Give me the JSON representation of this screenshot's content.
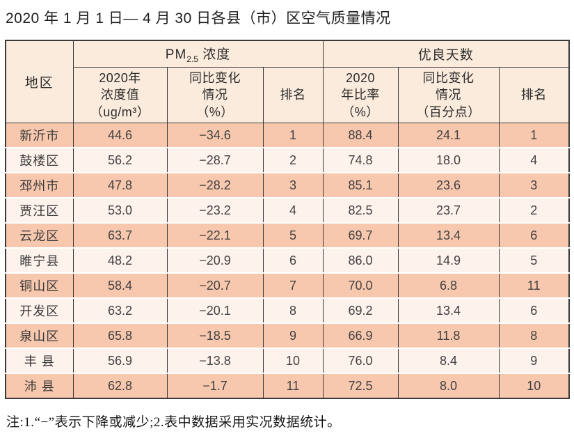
{
  "title": "2020 年 1 月 1 日— 4 月 30 日各县（市）区空气质量情况",
  "table": {
    "headers": {
      "region": "地区",
      "pm25_group": {
        "base": "PM",
        "sub": "2.5",
        "rest": " 浓度"
      },
      "good_days_group": "优良天数",
      "pm_value": "2020年\n浓度值\n（ug/m³）",
      "pm_change": "同比变化\n情况\n（%）",
      "pm_rank": "排名",
      "good_rate": "2020\n年比率\n（%）",
      "good_change": "同比变化\n情况\n（百分点）",
      "good_rank": "排名"
    },
    "rows": [
      [
        "新沂市",
        "44.6",
        "−34.6",
        "1",
        "88.4",
        "24.1",
        "1"
      ],
      [
        "鼓楼区",
        "56.2",
        "−28.7",
        "2",
        "74.8",
        "18.0",
        "4"
      ],
      [
        "邳州市",
        "47.8",
        "−28.2",
        "3",
        "85.1",
        "23.6",
        "3"
      ],
      [
        "贾汪区",
        "53.0",
        "−23.2",
        "4",
        "82.5",
        "23.7",
        "2"
      ],
      [
        "云龙区",
        "63.7",
        "−22.1",
        "5",
        "69.7",
        "13.4",
        "6"
      ],
      [
        "睢宁县",
        "48.2",
        "−20.9",
        "6",
        "86.0",
        "14.9",
        "5"
      ],
      [
        "铜山区",
        "58.4",
        "−20.7",
        "7",
        "70.0",
        "6.8",
        "11"
      ],
      [
        "开发区",
        "63.2",
        "−20.1",
        "8",
        "69.2",
        "13.4",
        "6"
      ],
      [
        "泉山区",
        "65.8",
        "−18.5",
        "9",
        "66.9",
        "11.8",
        "8"
      ],
      [
        "丰 县",
        "56.9",
        "−13.8",
        "10",
        "76.0",
        "8.4",
        "9"
      ],
      [
        "沛 县",
        "62.8",
        "−1.7",
        "11",
        "72.5",
        "8.0",
        "10"
      ]
    ]
  },
  "footnote": "注:1.“−”表示下降或减少;2.表中数据采用实况数据统计。",
  "colors": {
    "row_salmon": "#f8c8ae",
    "row_light": "#fdf2ec",
    "header_bg": "#faebdc",
    "border": "#3a3a3a"
  }
}
